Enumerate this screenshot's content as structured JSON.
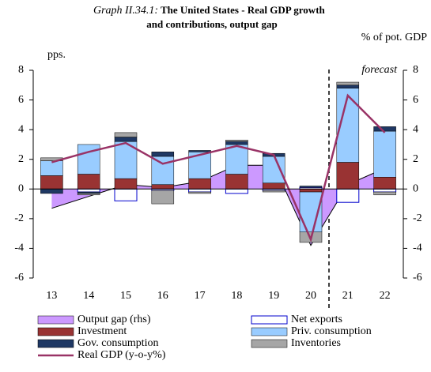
{
  "chart_data": {
    "type": "bar",
    "label": "Graph II.34.1:",
    "title": [
      "The United States - Real GDP growth",
      "and contributions, output gap"
    ],
    "ylabel": "pps.",
    "y2label": "% of pot. GDP",
    "annotation": "forecast",
    "categories": [
      "13",
      "14",
      "15",
      "16",
      "17",
      "18",
      "19",
      "20",
      "21",
      "22"
    ],
    "ylim": [
      -6,
      8
    ],
    "yticks": [
      -6,
      -4,
      -2,
      0,
      2,
      4,
      6,
      8
    ],
    "y2lim": [
      -6,
      8
    ],
    "y2ticks": [
      -6,
      -4,
      -2,
      0,
      2,
      4,
      6,
      8
    ],
    "series": [
      {
        "name": "Output gap (rhs)",
        "type": "area",
        "axis": "y2",
        "color": "#cc99ff",
        "values": [
          -1.3,
          -0.5,
          0.3,
          0.1,
          0.5,
          1.6,
          1.6,
          -3.8,
          0.3,
          1.4
        ]
      },
      {
        "name": "Net exports",
        "type": "bar",
        "color": "#ffffff",
        "edge": "#0000cc",
        "values": [
          0.0,
          -0.2,
          -0.8,
          -0.1,
          -0.2,
          -0.3,
          -0.1,
          0.1,
          -0.9,
          -0.2
        ]
      },
      {
        "name": "Investment",
        "type": "bar",
        "color": "#993333",
        "values": [
          0.9,
          1.0,
          0.7,
          0.3,
          0.7,
          1.0,
          0.4,
          -0.2,
          1.8,
          0.8
        ]
      },
      {
        "name": "Priv. consumption",
        "type": "bar",
        "color": "#99ccff",
        "values": [
          1.0,
          2.0,
          2.5,
          1.9,
          1.8,
          2.0,
          1.8,
          -2.7,
          5.0,
          3.1
        ]
      },
      {
        "name": "Gov. consumption",
        "type": "bar",
        "color": "#1f3864",
        "values": [
          -0.3,
          -0.1,
          0.3,
          0.3,
          0.1,
          0.2,
          0.2,
          0.1,
          0.2,
          0.3
        ]
      },
      {
        "name": "Inventories",
        "type": "bar",
        "color": "#a6a6a6",
        "values": [
          0.2,
          -0.1,
          0.3,
          -0.9,
          -0.1,
          0.1,
          -0.1,
          -0.7,
          0.2,
          -0.2
        ]
      },
      {
        "name": "Real GDP (y-o-y%)",
        "type": "line",
        "color": "#993366",
        "values": [
          1.8,
          2.5,
          3.1,
          1.7,
          2.3,
          2.9,
          2.3,
          -3.4,
          6.3,
          3.8
        ]
      }
    ]
  }
}
